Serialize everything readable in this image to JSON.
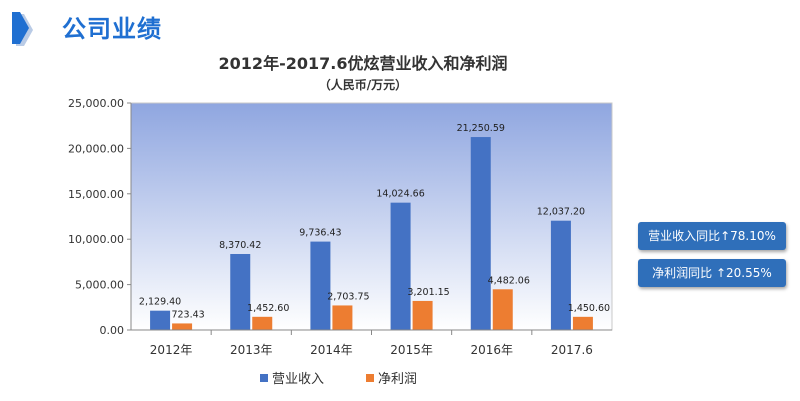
{
  "header": {
    "title": "公司业绩",
    "accent_color": "#1f6fd1"
  },
  "chart_data": {
    "type": "bar",
    "title": "2012年-2017.6优炫营业收入和净利润",
    "subtitle": "（人民币/万元）",
    "categories": [
      "2012年",
      "2013年",
      "2014年",
      "2015年",
      "2016年",
      "2017.6"
    ],
    "series": [
      {
        "name": "营业收入",
        "color": "#4472c4",
        "values": [
          2129.4,
          8370.42,
          9736.43,
          14024.66,
          21250.59,
          12037.2
        ],
        "labels": [
          "2,129.40",
          "8,370.42",
          "9,736.43",
          "14,024.66",
          "21,250.59",
          "12,037.20"
        ]
      },
      {
        "name": "净利润",
        "color": "#ed7d31",
        "values": [
          723.43,
          1452.6,
          2703.75,
          3201.15,
          4482.06,
          1450.6
        ],
        "labels": [
          "723.43",
          "1,452.60",
          "2,703.75",
          "3,201.15",
          "4,482.06",
          "1,450.60"
        ]
      }
    ],
    "ylim": [
      0,
      25000
    ],
    "yticks": [
      0,
      5000,
      10000,
      15000,
      20000,
      25000
    ],
    "ytick_labels": [
      "0.00",
      "5,000.00",
      "10,000.00",
      "15,000.00",
      "20,000.00",
      "25,000.00"
    ],
    "grid": false,
    "legend_position": "bottom"
  },
  "badges": [
    {
      "text": "营业收入同比↑78.10%"
    },
    {
      "text": "净利润同比  ↑20.55%"
    }
  ]
}
